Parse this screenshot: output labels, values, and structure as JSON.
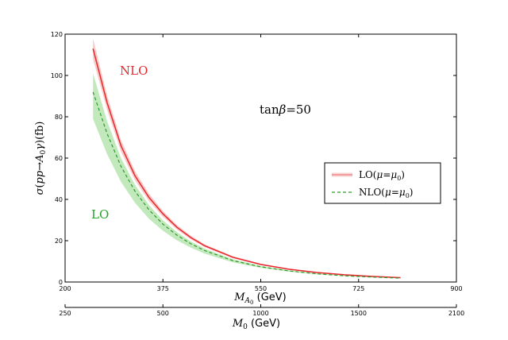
{
  "chart_data": {
    "type": "line",
    "title": "",
    "xlabel": "M_A0 (GeV)",
    "secondary_xlabel": "M_0 (GeV)",
    "ylabel": "σ(pp→A0γ)(fb)",
    "xlim": [
      200,
      900
    ],
    "ylim": [
      0,
      120
    ],
    "xticks": [
      "200",
      "375",
      "550",
      "725",
      "900"
    ],
    "yticks": [
      "0",
      "20",
      "40",
      "60",
      "80",
      "100",
      "120"
    ],
    "secondary_xticks": [
      "250",
      "500",
      "1000",
      "1500",
      "2100"
    ],
    "annotations": {
      "nlo": "NLO",
      "lo": "LO",
      "tanbeta": "tanβ=50"
    },
    "legend": {
      "position": "center-right",
      "entries": [
        "LO(μ=μ0)",
        "NLO(μ=μ0)"
      ]
    },
    "colors": {
      "lo_line": "#e8262c",
      "lo_band": "#f5b8b5",
      "nlo_line": "#2e9a2e",
      "nlo_band": "#b7e5b0",
      "nlo_label": "#e8262c",
      "lo_label": "#27a327"
    },
    "series": [
      {
        "name": "LO(μ=μ0)",
        "style": "solid",
        "x": [
          250,
          275,
          300,
          325,
          350,
          375,
          400,
          425,
          450,
          500,
          550,
          600,
          650,
          700,
          750,
          800
        ],
        "y": [
          113,
          87,
          66,
          51.5,
          41,
          33,
          26.5,
          21.5,
          17.5,
          12,
          8.5,
          6.2,
          4.6,
          3.5,
          2.7,
          2.1
        ],
        "band_upper": [
          118,
          90.5,
          68.8,
          53.7,
          42.8,
          34.4,
          27.6,
          22.4,
          18.2,
          12.5,
          8.85,
          6.45,
          4.78,
          3.64,
          2.8,
          2.18
        ],
        "band_lower": [
          108,
          83.5,
          63.2,
          49.3,
          39.2,
          31.6,
          25.4,
          20.6,
          16.8,
          11.5,
          8.15,
          5.95,
          4.42,
          3.36,
          2.6,
          2.02
        ]
      },
      {
        "name": "NLO(μ=μ0)",
        "style": "dashed",
        "x": [
          250,
          275,
          300,
          325,
          350,
          375,
          400,
          425,
          450,
          500,
          550,
          600,
          650,
          700,
          750,
          800
        ],
        "y": [
          92,
          72,
          56,
          44,
          35,
          28,
          22.7,
          18.5,
          15.2,
          10.4,
          7.4,
          5.4,
          4.0,
          3.0,
          2.4,
          1.9
        ],
        "band_upper": [
          101,
          78,
          60,
          47,
          37.3,
          29.8,
          24.1,
          19.6,
          16.1,
          11.0,
          7.8,
          5.7,
          4.2,
          3.15,
          2.5,
          1.98
        ],
        "band_lower": [
          79,
          62,
          48.5,
          38.4,
          30.7,
          24.8,
          20.2,
          16.6,
          13.7,
          9.5,
          6.8,
          5.0,
          3.7,
          2.8,
          2.25,
          1.8
        ]
      }
    ]
  }
}
